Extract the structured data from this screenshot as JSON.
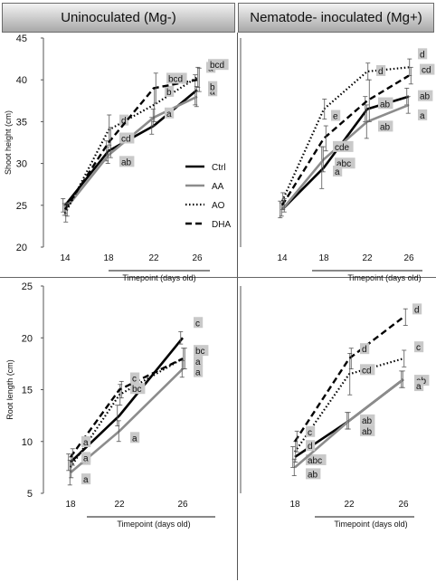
{
  "headers": {
    "left": "Uninoculated (Mg-)",
    "right": "Nematode- inoculated (Mg+)"
  },
  "colors": {
    "Ctrl": "#000000",
    "AA": "#8c8c8c",
    "AO": "#000000",
    "DHA": "#000000",
    "letter_bg": "#c9c9c9",
    "header_top": "#f2f2f2",
    "header_bottom": "#a8a8a8"
  },
  "chart_data": [
    {
      "type": "line",
      "panel": "shoot-uninoculated",
      "x": [
        14,
        18,
        22,
        26
      ],
      "ylim": [
        20,
        45
      ],
      "yticks": [
        20,
        25,
        30,
        35,
        40,
        45
      ],
      "xlabel": "Timepoint (days old)",
      "ylabel": "Shoot height (cm)",
      "legend": {
        "entries": [
          "Ctrl",
          "AA",
          "AO",
          "DHA"
        ]
      },
      "series": [
        {
          "name": "Ctrl",
          "style": "solid",
          "values": [
            25.0,
            31.5,
            34.5,
            38.8
          ],
          "errors": [
            0.8,
            1.2,
            1.0,
            1.8
          ],
          "letters": [
            "",
            "",
            "",
            "a"
          ]
        },
        {
          "name": "AA",
          "style": "solid-gray",
          "values": [
            24.5,
            31.0,
            35.5,
            38.0
          ],
          "errors": [
            0.7,
            1.0,
            1.0,
            1.2
          ],
          "letters": [
            "",
            "ab",
            "a",
            "b"
          ]
        },
        {
          "name": "AO",
          "style": "dotted",
          "values": [
            24.0,
            34.0,
            37.0,
            40.3
          ],
          "errors": [
            1.0,
            1.8,
            2.0,
            1.2
          ],
          "letters": [
            "",
            "d",
            "b",
            "a"
          ]
        },
        {
          "name": "DHA",
          "style": "dashed",
          "values": [
            24.5,
            32.5,
            39.0,
            40.0
          ],
          "errors": [
            0.8,
            1.8,
            1.8,
            1.4
          ],
          "letters": [
            "",
            "cd",
            "bcd",
            "bcd"
          ]
        }
      ],
      "extra_letters": [
        "bc",
        "a"
      ]
    },
    {
      "type": "line",
      "panel": "shoot-inoculated",
      "x": [
        14,
        18,
        22,
        26
      ],
      "ylim": [
        20,
        45
      ],
      "xlabel": "Timepoint (days old)",
      "series": [
        {
          "name": "Ctrl",
          "style": "solid",
          "values": [
            24.5,
            29.5,
            36.5,
            38.0
          ],
          "errors": [
            1.0,
            2.5,
            1.5,
            1.0
          ],
          "letters": [
            "",
            "abc",
            "ab",
            "ab"
          ]
        },
        {
          "name": "AA",
          "style": "solid-gray",
          "values": [
            24.5,
            30.5,
            35.0,
            37.0
          ],
          "errors": [
            0.8,
            1.5,
            2.0,
            1.0
          ],
          "letters": [
            "",
            "a",
            "ab",
            "a"
          ]
        },
        {
          "name": "AO",
          "style": "dotted",
          "values": [
            25.5,
            36.5,
            41.0,
            41.5
          ],
          "errors": [
            1.0,
            1.2,
            1.0,
            1.0
          ],
          "letters": [
            "",
            "e",
            "d",
            "d"
          ]
        },
        {
          "name": "DHA",
          "style": "dashed",
          "values": [
            25.0,
            33.0,
            37.5,
            40.5
          ],
          "errors": [
            0.8,
            1.5,
            2.5,
            1.0
          ],
          "letters": [
            "",
            "cde",
            "ab",
            "cd"
          ]
        }
      ]
    },
    {
      "type": "line",
      "panel": "root-uninoculated",
      "x": [
        18,
        22,
        26
      ],
      "ylim": [
        5,
        25
      ],
      "yticks": [
        5,
        10,
        15,
        20,
        25
      ],
      "xlabel": "Timepoint (days old)",
      "ylabel": "Root length (cm)",
      "series": [
        {
          "name": "Ctrl",
          "style": "solid",
          "values": [
            8.0,
            12.5,
            20.0
          ],
          "errors": [
            0.8,
            1.0,
            0.6
          ],
          "letters": [
            "a",
            "",
            "c"
          ]
        },
        {
          "name": "AA",
          "style": "solid-gray",
          "values": [
            7.0,
            11.0,
            17.0
          ],
          "errors": [
            1.2,
            1.0,
            0.8
          ],
          "letters": [
            "a",
            "a",
            "a"
          ]
        },
        {
          "name": "AO",
          "style": "dotted",
          "values": [
            7.5,
            14.5,
            18.0
          ],
          "errors": [
            1.0,
            1.0,
            1.0
          ],
          "letters": [
            "a",
            "bc",
            "bc"
          ]
        },
        {
          "name": "DHA",
          "style": "dashed",
          "values": [
            8.5,
            15.0,
            18.0
          ],
          "errors": [
            0.8,
            0.8,
            1.0
          ],
          "letters": [
            "a",
            "c",
            "a"
          ]
        }
      ],
      "extra_letters": [
        "a"
      ]
    },
    {
      "type": "line",
      "panel": "root-inoculated",
      "x": [
        18,
        22,
        26
      ],
      "ylim": [
        5,
        25
      ],
      "xlabel": "Timepoint (days old)",
      "series": [
        {
          "name": "Ctrl",
          "style": "solid",
          "values": [
            8.5,
            12.0,
            16.0
          ],
          "errors": [
            1.0,
            0.8,
            0.8
          ],
          "letters": [
            "abc",
            "ab",
            "ab"
          ]
        },
        {
          "name": "AA",
          "style": "solid-gray",
          "values": [
            7.5,
            12.0,
            16.0
          ],
          "errors": [
            0.8,
            0.8,
            0.8
          ],
          "letters": [
            "ab",
            "ab",
            "a"
          ]
        },
        {
          "name": "AO",
          "style": "dotted",
          "values": [
            9.0,
            16.5,
            18.0
          ],
          "errors": [
            1.0,
            2.0,
            0.8
          ],
          "letters": [
            "d",
            "cd",
            "c"
          ]
        },
        {
          "name": "DHA",
          "style": "dashed",
          "values": [
            10.0,
            18.0,
            22.0
          ],
          "errors": [
            1.0,
            1.0,
            0.8
          ],
          "letters": [
            "c",
            "d",
            "d"
          ]
        }
      ]
    }
  ]
}
